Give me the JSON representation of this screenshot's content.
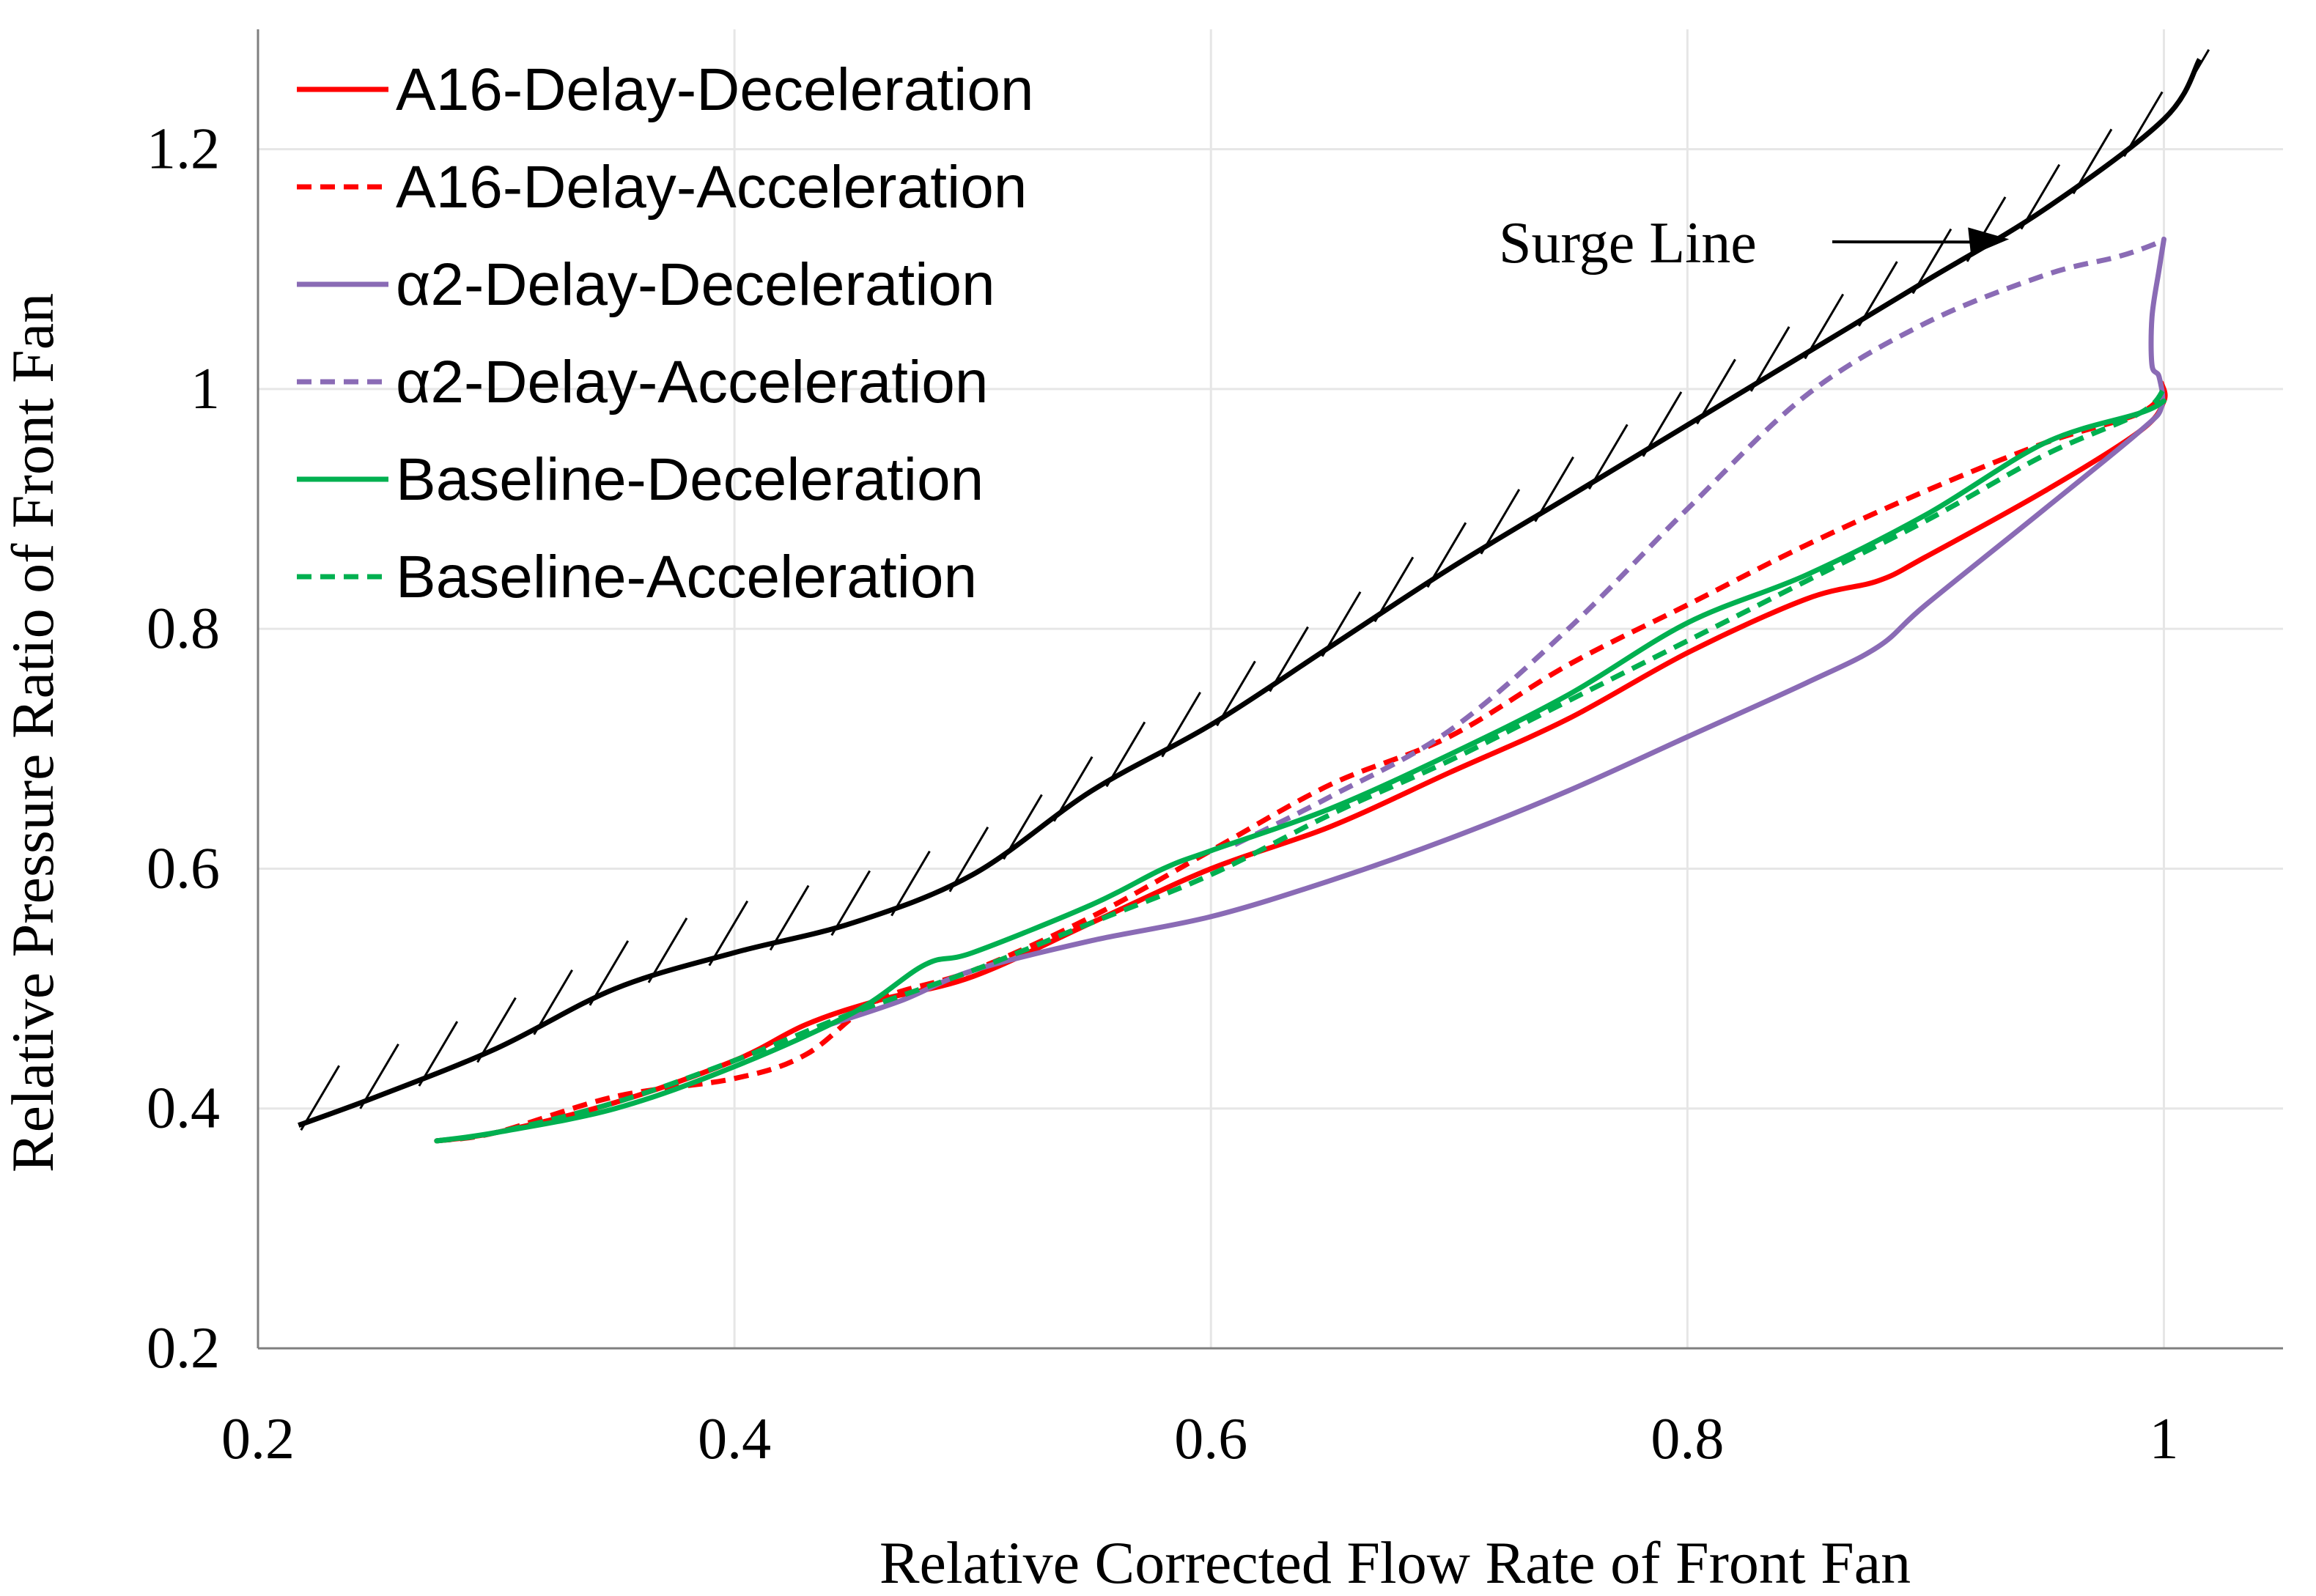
{
  "chart_data": {
    "type": "line",
    "title": "",
    "xlabel": "Relative Corrected Flow Rate of Front Fan",
    "ylabel": "Relative Pressure Ratio of Front Fan",
    "xlim": [
      0.2,
      1.05
    ],
    "ylim": [
      0.2,
      1.3
    ],
    "grid": true,
    "legend_position": "top-left",
    "x_ticks": [
      {
        "value": 0.2,
        "label": "0.2"
      },
      {
        "value": 0.4,
        "label": "0.4"
      },
      {
        "value": 0.6,
        "label": "0.6"
      },
      {
        "value": 0.8,
        "label": "0.8"
      },
      {
        "value": 1.0,
        "label": "1"
      }
    ],
    "y_ticks": [
      {
        "value": 0.2,
        "label": "0.2"
      },
      {
        "value": 0.4,
        "label": "0.4"
      },
      {
        "value": 0.6,
        "label": "0.6"
      },
      {
        "value": 0.8,
        "label": "0.8"
      },
      {
        "value": 1.0,
        "label": "1"
      },
      {
        "value": 1.2,
        "label": "1.2"
      }
    ],
    "surge_line": {
      "name": "Surge Line",
      "color": "#000000",
      "x": [
        0.217,
        0.25,
        0.3,
        0.35,
        0.4,
        0.45,
        0.5,
        0.55,
        0.6,
        0.65,
        0.7,
        0.75,
        0.8,
        0.85,
        0.9,
        0.95,
        1.0,
        1.015
      ],
      "y": [
        0.386,
        0.41,
        0.45,
        0.5,
        0.53,
        0.555,
        0.595,
        0.665,
        0.72,
        0.785,
        0.85,
        0.91,
        0.97,
        1.03,
        1.09,
        1.15,
        1.225,
        1.275
      ]
    },
    "annotations": [
      {
        "text": "Surge Line",
        "arrow_to": [
          0.935,
          1.125
        ]
      }
    ],
    "series": [
      {
        "name": "A16-Delay-Deceleration",
        "color": "#ff0000",
        "dash": false,
        "x": [
          0.275,
          0.3,
          0.35,
          0.4,
          0.43,
          0.46,
          0.5,
          0.55,
          0.6,
          0.65,
          0.7,
          0.75,
          0.8,
          0.85,
          0.88,
          0.9,
          0.95,
          0.99,
          1.0,
          0.999
        ],
        "y": [
          0.373,
          0.38,
          0.405,
          0.44,
          0.47,
          0.49,
          0.51,
          0.555,
          0.6,
          0.635,
          0.68,
          0.725,
          0.78,
          0.825,
          0.84,
          0.86,
          0.915,
          0.965,
          0.99,
          1.005
        ]
      },
      {
        "name": "A16-Delay-Acceleration",
        "color": "#ff0000",
        "dash": true,
        "x": [
          0.275,
          0.3,
          0.35,
          0.4,
          0.43,
          0.46,
          0.5,
          0.55,
          0.6,
          0.65,
          0.7,
          0.75,
          0.8,
          0.85,
          0.9,
          0.95,
          0.99,
          1.0
        ],
        "y": [
          0.373,
          0.38,
          0.41,
          0.425,
          0.445,
          0.49,
          0.515,
          0.56,
          0.615,
          0.67,
          0.71,
          0.77,
          0.82,
          0.87,
          0.915,
          0.955,
          0.98,
          1.0
        ]
      },
      {
        "name": "α2-Delay-Deceleration",
        "color": "#8a6bb5",
        "dash": false,
        "x": [
          0.44,
          0.47,
          0.5,
          0.55,
          0.6,
          0.65,
          0.7,
          0.75,
          0.8,
          0.85,
          0.88,
          0.9,
          0.95,
          0.99,
          0.999,
          0.998,
          0.995,
          0.995,
          0.998,
          1.0
        ],
        "y": [
          0.47,
          0.49,
          0.515,
          0.54,
          0.56,
          0.59,
          0.625,
          0.665,
          0.71,
          0.755,
          0.785,
          0.82,
          0.9,
          0.965,
          0.985,
          1.01,
          1.02,
          1.06,
          1.1,
          1.125
        ]
      },
      {
        "name": "α2-Delay-Acceleration",
        "color": "#8a6bb5",
        "dash": true,
        "x": [
          0.61,
          0.65,
          0.7,
          0.75,
          0.8,
          0.85,
          0.9,
          0.95,
          0.98,
          0.995,
          1.0
        ],
        "y": [
          0.62,
          0.66,
          0.715,
          0.8,
          0.9,
          0.995,
          1.055,
          1.095,
          1.11,
          1.12,
          1.125
        ]
      },
      {
        "name": "Baseline-Deceleration",
        "color": "#00b050",
        "dash": false,
        "x": [
          0.275,
          0.3,
          0.35,
          0.4,
          0.45,
          0.48,
          0.5,
          0.55,
          0.58,
          0.6,
          0.65,
          0.7,
          0.75,
          0.8,
          0.85,
          0.9,
          0.95,
          0.99,
          1.0
        ],
        "y": [
          0.373,
          0.38,
          0.4,
          0.435,
          0.48,
          0.52,
          0.53,
          0.57,
          0.6,
          0.615,
          0.65,
          0.695,
          0.745,
          0.805,
          0.845,
          0.895,
          0.955,
          0.98,
          0.99
        ]
      },
      {
        "name": "Baseline-Acceleration",
        "color": "#00b050",
        "dash": true,
        "x": [
          0.275,
          0.3,
          0.35,
          0.4,
          0.45,
          0.5,
          0.55,
          0.6,
          0.65,
          0.7,
          0.75,
          0.8,
          0.85,
          0.9,
          0.95,
          0.99,
          1.0
        ],
        "y": [
          0.373,
          0.38,
          0.405,
          0.44,
          0.48,
          0.515,
          0.555,
          0.595,
          0.645,
          0.69,
          0.74,
          0.79,
          0.84,
          0.89,
          0.945,
          0.98,
          1.0
        ]
      }
    ]
  }
}
